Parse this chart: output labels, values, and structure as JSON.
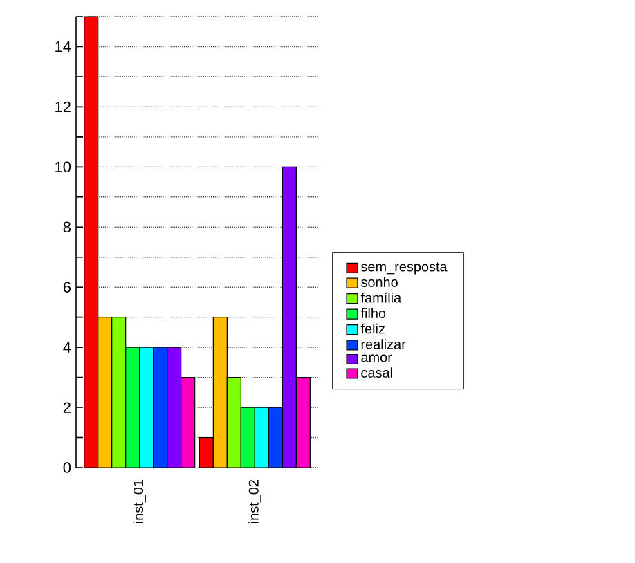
{
  "chart_data": {
    "type": "bar",
    "categories": [
      "inst_01",
      "inst_02"
    ],
    "series": [
      {
        "name": "sem_resposta",
        "color": "#ff0000",
        "values": [
          15,
          1
        ]
      },
      {
        "name": "sonho",
        "color": "#ffbf00",
        "values": [
          5,
          5
        ]
      },
      {
        "name": "família",
        "color": "#80ff00",
        "values": [
          5,
          3
        ]
      },
      {
        "name": "filho",
        "color": "#00ff40",
        "values": [
          4,
          2
        ]
      },
      {
        "name": "feliz",
        "color": "#00ffff",
        "values": [
          4,
          2
        ]
      },
      {
        "name": "realizar",
        "color": "#0040ff",
        "values": [
          4,
          2
        ]
      },
      {
        "name": "amor",
        "color": "#8000ff",
        "values": [
          4,
          10
        ]
      },
      {
        "name": "casal",
        "color": "#ff00bf",
        "values": [
          3,
          3
        ]
      }
    ],
    "ylim": [
      0,
      15
    ],
    "yticks": [
      0,
      {
        "value": 1,
        "label": null
      },
      2,
      {
        "value": 3,
        "label": null
      },
      4,
      {
        "value": 5,
        "label": null
      },
      6,
      {
        "value": 7,
        "label": null
      },
      8,
      {
        "value": 9,
        "label": null
      },
      10,
      {
        "value": 11,
        "label": null
      },
      12,
      {
        "value": 13,
        "label": null
      },
      14,
      {
        "value": 15,
        "label": null
      }
    ],
    "grid": "y",
    "legend": "right"
  }
}
